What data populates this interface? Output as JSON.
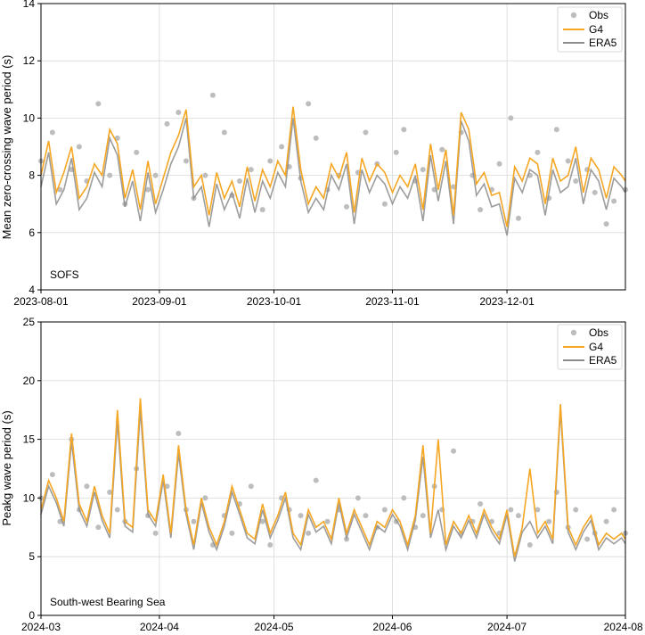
{
  "colors": {
    "obs": "#bdbdbd",
    "g4": "#f5a623",
    "era5": "#8c8c8c",
    "grid": "#d9d9d9"
  },
  "chart_data": [
    {
      "type": "line",
      "annotation": "SOFS",
      "ylabel": "Mean zero-crossing wave period (s)",
      "xlabel": "",
      "ylim": [
        4,
        14
      ],
      "yticks": [
        "4",
        "6",
        "8",
        "10",
        "12",
        "14"
      ],
      "xrange_days": [
        0,
        153
      ],
      "xticks": [
        {
          "label": "2023-08-01",
          "day": 0
        },
        {
          "label": "2023-09-01",
          "day": 31
        },
        {
          "label": "2023-10-01",
          "day": 61
        },
        {
          "label": "2023-11-01",
          "day": 92
        },
        {
          "label": "2023-12-01",
          "day": 122
        }
      ],
      "legend": {
        "position": "top-right",
        "entries": [
          "Obs",
          "G4",
          "ERA5"
        ]
      },
      "series": [
        {
          "name": "Obs",
          "style": "scatter",
          "x_days": [
            0,
            3,
            5,
            8,
            10,
            12,
            15,
            18,
            20,
            22,
            25,
            28,
            30,
            33,
            36,
            38,
            40,
            43,
            45,
            48,
            50,
            52,
            55,
            58,
            60,
            63,
            65,
            68,
            70,
            72,
            75,
            78,
            80,
            83,
            85,
            88,
            90,
            93,
            95,
            98,
            100,
            103,
            105,
            108,
            110,
            113,
            115,
            118,
            120,
            123,
            125,
            128,
            130,
            133,
            135,
            138,
            140,
            143,
            145,
            148,
            150,
            153
          ],
          "values": [
            8.5,
            9.5,
            7.5,
            8.2,
            9.0,
            7.8,
            10.5,
            8.0,
            9.3,
            7.0,
            8.8,
            7.5,
            8.0,
            9.8,
            10.2,
            8.5,
            7.2,
            8.0,
            10.8,
            9.5,
            7.3,
            7.8,
            8.2,
            6.8,
            8.5,
            9.0,
            8.3,
            7.9,
            10.5,
            9.3,
            7.5,
            8.0,
            6.9,
            8.1,
            9.5,
            8.4,
            7.0,
            8.8,
            9.6,
            7.8,
            8.2,
            7.5,
            8.9,
            7.6,
            9.5,
            8.0,
            6.8,
            7.5,
            8.4,
            10.0,
            6.5,
            8.0,
            8.8,
            7.2,
            9.6,
            8.5,
            7.8,
            8.2,
            7.4,
            6.3,
            7.1,
            7.5
          ]
        },
        {
          "name": "G4",
          "style": "line",
          "x_days": [
            0,
            2,
            4,
            6,
            8,
            10,
            12,
            14,
            16,
            18,
            20,
            22,
            24,
            26,
            28,
            30,
            32,
            34,
            36,
            38,
            40,
            42,
            44,
            46,
            48,
            50,
            52,
            54,
            56,
            58,
            60,
            62,
            64,
            66,
            68,
            70,
            72,
            74,
            76,
            78,
            80,
            82,
            84,
            86,
            88,
            90,
            92,
            94,
            96,
            98,
            100,
            102,
            104,
            106,
            108,
            110,
            112,
            114,
            116,
            118,
            120,
            122,
            124,
            126,
            128,
            130,
            132,
            134,
            136,
            138,
            140,
            142,
            144,
            146,
            148,
            150,
            152,
            153
          ],
          "values": [
            8.0,
            9.2,
            7.4,
            8.1,
            9.0,
            7.2,
            7.6,
            8.4,
            8.0,
            9.6,
            9.1,
            7.2,
            8.2,
            6.8,
            8.5,
            7.0,
            7.9,
            8.8,
            9.4,
            10.3,
            7.6,
            8.0,
            6.6,
            8.1,
            7.2,
            7.8,
            6.9,
            8.3,
            7.1,
            8.2,
            7.6,
            8.5,
            8.0,
            10.4,
            8.2,
            7.0,
            7.6,
            7.2,
            8.4,
            7.9,
            8.8,
            6.7,
            8.6,
            7.8,
            8.4,
            8.1,
            7.4,
            8.0,
            7.6,
            8.4,
            6.8,
            9.1,
            7.5,
            8.9,
            6.6,
            10.2,
            9.6,
            7.7,
            8.1,
            7.3,
            7.4,
            6.2,
            8.3,
            7.8,
            8.6,
            8.4,
            7.0,
            8.6,
            7.8,
            8.0,
            9.0,
            7.4,
            8.6,
            8.2,
            7.2,
            8.3,
            8.0,
            7.8
          ]
        },
        {
          "name": "ERA5",
          "style": "line",
          "x_days": [
            0,
            2,
            4,
            6,
            8,
            10,
            12,
            14,
            16,
            18,
            20,
            22,
            24,
            26,
            28,
            30,
            32,
            34,
            36,
            38,
            40,
            42,
            44,
            46,
            48,
            50,
            52,
            54,
            56,
            58,
            60,
            62,
            64,
            66,
            68,
            70,
            72,
            74,
            76,
            78,
            80,
            82,
            84,
            86,
            88,
            90,
            92,
            94,
            96,
            98,
            100,
            102,
            104,
            106,
            108,
            110,
            112,
            114,
            116,
            118,
            120,
            122,
            124,
            126,
            128,
            130,
            132,
            134,
            136,
            138,
            140,
            142,
            144,
            146,
            148,
            150,
            152,
            153
          ],
          "values": [
            7.6,
            8.8,
            7.0,
            7.5,
            8.6,
            6.8,
            7.2,
            8.1,
            7.6,
            9.3,
            8.7,
            6.9,
            7.8,
            6.4,
            8.1,
            6.7,
            7.5,
            8.4,
            9.0,
            10.0,
            7.2,
            7.6,
            6.2,
            7.7,
            6.8,
            7.4,
            6.5,
            7.9,
            6.7,
            7.8,
            7.2,
            8.1,
            7.6,
            10.0,
            7.8,
            6.7,
            7.2,
            6.8,
            8.0,
            7.5,
            8.4,
            6.3,
            8.2,
            7.4,
            8.0,
            7.7,
            7.0,
            7.6,
            7.2,
            8.0,
            6.4,
            8.7,
            7.1,
            8.5,
            6.3,
            9.9,
            9.2,
            7.3,
            7.7,
            6.9,
            7.0,
            5.9,
            7.9,
            7.4,
            8.2,
            8.0,
            6.6,
            8.2,
            7.4,
            7.6,
            8.6,
            7.0,
            8.2,
            7.8,
            6.8,
            7.9,
            7.6,
            7.4
          ]
        }
      ]
    },
    {
      "type": "line",
      "annotation": "South-west Bearing Sea",
      "ylabel": "Peakg wave period (s)",
      "xlabel": "",
      "ylim": [
        0,
        25
      ],
      "yticks": [
        "0",
        "5",
        "10",
        "15",
        "20",
        "25"
      ],
      "xrange_days": [
        0,
        153
      ],
      "xticks": [
        {
          "label": "2024-03",
          "day": 0
        },
        {
          "label": "2024-04",
          "day": 31
        },
        {
          "label": "2024-05",
          "day": 61
        },
        {
          "label": "2024-06",
          "day": 92
        },
        {
          "label": "2024-07",
          "day": 122
        },
        {
          "label": "2024-08",
          "day": 153
        }
      ],
      "legend": {
        "position": "top-right",
        "entries": [
          "Obs",
          "G4",
          "ERA5"
        ]
      },
      "series": [
        {
          "name": "Obs",
          "style": "scatter",
          "x_days": [
            0,
            3,
            5,
            8,
            10,
            12,
            15,
            18,
            20,
            22,
            25,
            28,
            30,
            33,
            36,
            38,
            40,
            43,
            45,
            48,
            50,
            52,
            55,
            58,
            60,
            63,
            65,
            68,
            70,
            72,
            75,
            78,
            80,
            83,
            85,
            88,
            90,
            93,
            95,
            98,
            100,
            103,
            105,
            108,
            110,
            113,
            115,
            118,
            120,
            123,
            125,
            128,
            130,
            133,
            135,
            138,
            140,
            143,
            145,
            148,
            150,
            153
          ],
          "values": [
            10.0,
            12.0,
            8.0,
            15.0,
            9.0,
            11.0,
            7.5,
            10.5,
            9.0,
            8.0,
            12.5,
            8.5,
            7.0,
            11.0,
            15.5,
            9.0,
            8.0,
            10.0,
            6.0,
            8.5,
            7.0,
            9.5,
            11.0,
            8.0,
            6.0,
            10.0,
            9.0,
            8.5,
            7.0,
            11.5,
            8.0,
            9.0,
            6.5,
            10.0,
            8.5,
            7.5,
            9.0,
            8.0,
            10.0,
            7.5,
            8.5,
            11.0,
            9.0,
            14.0,
            7.0,
            8.0,
            9.5,
            8.0,
            7.0,
            9.0,
            8.5,
            6.0,
            9.0,
            8.0,
            10.5,
            7.5,
            9.0,
            6.5,
            7.0,
            8.0,
            9.0,
            7.0
          ]
        },
        {
          "name": "G4",
          "style": "line",
          "x_days": [
            0,
            2,
            4,
            6,
            8,
            10,
            12,
            14,
            16,
            18,
            20,
            22,
            24,
            26,
            28,
            30,
            32,
            34,
            36,
            38,
            40,
            42,
            44,
            46,
            48,
            50,
            52,
            54,
            56,
            58,
            60,
            62,
            64,
            66,
            68,
            70,
            72,
            74,
            76,
            78,
            80,
            82,
            84,
            86,
            88,
            90,
            92,
            94,
            96,
            98,
            100,
            102,
            104,
            106,
            108,
            110,
            112,
            114,
            116,
            118,
            120,
            122,
            124,
            126,
            128,
            130,
            132,
            134,
            136,
            138,
            140,
            142,
            144,
            146,
            148,
            150,
            152,
            153
          ],
          "values": [
            9.0,
            11.5,
            10.0,
            8.0,
            15.5,
            9.5,
            8.0,
            11.0,
            8.5,
            7.0,
            17.5,
            8.0,
            7.5,
            18.5,
            9.0,
            8.0,
            12.0,
            7.0,
            14.5,
            9.0,
            6.0,
            10.0,
            7.5,
            6.0,
            8.0,
            11.0,
            9.0,
            7.0,
            6.5,
            9.5,
            7.0,
            8.5,
            10.5,
            7.0,
            6.0,
            9.0,
            7.5,
            8.0,
            6.5,
            10.0,
            7.0,
            9.0,
            7.5,
            6.0,
            8.0,
            7.5,
            9.0,
            8.0,
            6.0,
            8.5,
            14.5,
            7.0,
            15.0,
            6.0,
            8.0,
            7.0,
            8.5,
            7.0,
            9.0,
            7.5,
            6.5,
            9.0,
            5.0,
            7.5,
            12.5,
            7.0,
            8.0,
            6.5,
            18.0,
            7.5,
            6.0,
            7.5,
            8.5,
            6.0,
            7.0,
            6.5,
            7.0,
            6.5
          ]
        },
        {
          "name": "ERA5",
          "style": "line",
          "x_days": [
            0,
            2,
            4,
            6,
            8,
            10,
            12,
            14,
            16,
            18,
            20,
            22,
            24,
            26,
            28,
            30,
            32,
            34,
            36,
            38,
            40,
            42,
            44,
            46,
            48,
            50,
            52,
            54,
            56,
            58,
            60,
            62,
            64,
            66,
            68,
            70,
            72,
            74,
            76,
            78,
            80,
            82,
            84,
            86,
            88,
            90,
            92,
            94,
            96,
            98,
            100,
            102,
            104,
            106,
            108,
            110,
            112,
            114,
            116,
            118,
            120,
            122,
            124,
            126,
            128,
            130,
            132,
            134,
            136,
            138,
            140,
            142,
            144,
            146,
            148,
            150,
            152,
            153
          ],
          "values": [
            8.6,
            11.0,
            9.6,
            7.6,
            14.8,
            9.0,
            7.6,
            10.5,
            8.1,
            6.6,
            16.5,
            7.6,
            7.1,
            17.5,
            8.6,
            7.6,
            11.5,
            6.6,
            13.8,
            8.6,
            5.6,
            9.6,
            7.1,
            5.6,
            7.6,
            10.5,
            8.6,
            6.6,
            6.1,
            9.0,
            6.6,
            8.1,
            10.0,
            6.6,
            5.6,
            8.6,
            7.1,
            7.6,
            6.1,
            9.6,
            6.6,
            8.6,
            7.1,
            5.6,
            7.6,
            7.1,
            8.6,
            7.6,
            5.6,
            8.1,
            13.5,
            6.6,
            9.0,
            5.6,
            7.6,
            6.6,
            8.1,
            6.6,
            8.6,
            7.1,
            6.1,
            8.6,
            4.6,
            7.1,
            8.0,
            6.6,
            7.6,
            6.1,
            17.5,
            7.1,
            5.6,
            7.1,
            8.1,
            5.6,
            6.6,
            6.1,
            6.6,
            6.1
          ]
        }
      ]
    }
  ]
}
